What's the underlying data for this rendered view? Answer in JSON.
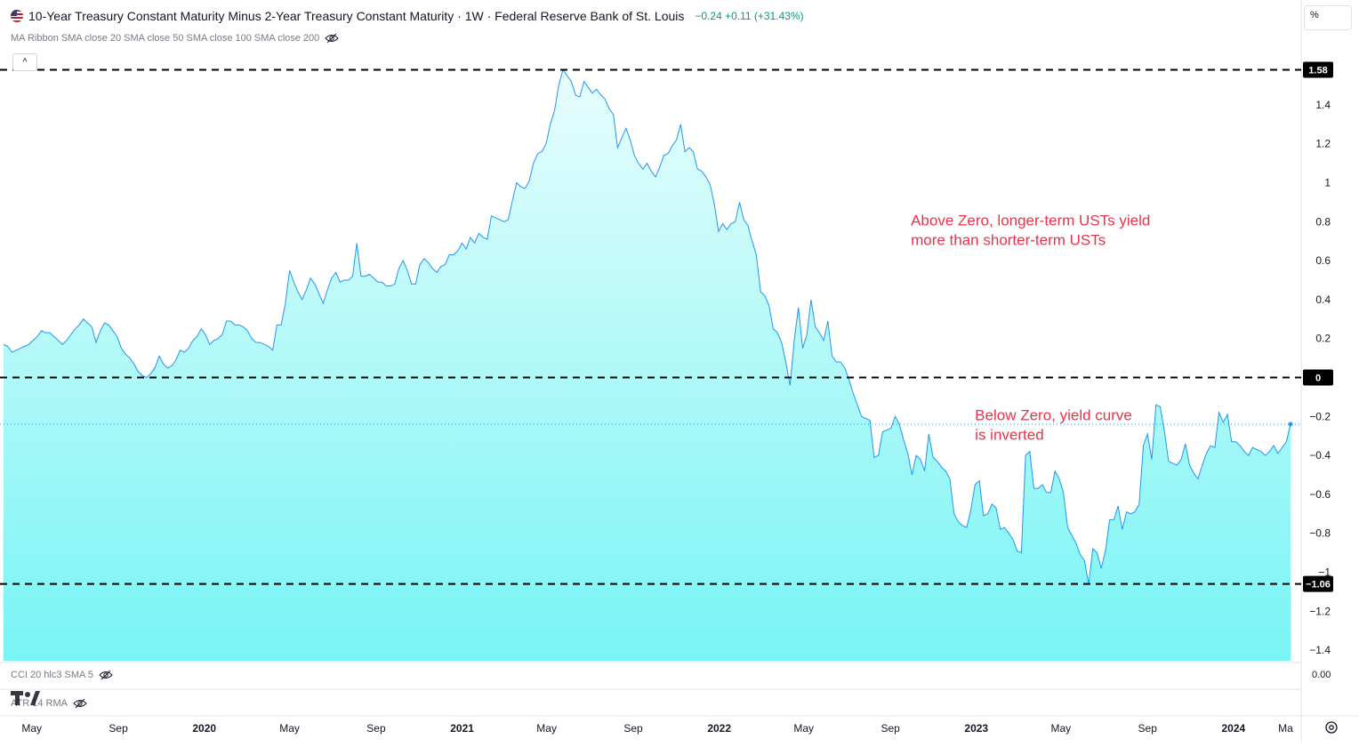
{
  "header": {
    "title": "10-Year Treasury Constant Maturity Minus 2-Year Treasury Constant Maturity · 1W · Federal Reserve Bank of St. Louis",
    "change": "−0.24 +0.11 (+31.43%)",
    "ma_ribbon": "MA Ribbon SMA close 20 SMA close 50 SMA close 100 SMA close 200",
    "flag_icon": "us-flag-icon"
  },
  "indicators": {
    "cci": "CCI 20 hlc3 SMA 5",
    "cci_value": "0.00",
    "atr": "ATR 14 RMA"
  },
  "scale_button": "%",
  "collapse_symbol": "^",
  "colors": {
    "line": "#2196f3",
    "fill_top": "#e9fdfd",
    "fill_bottom": "#78f4f4",
    "annotation": "#e8334a",
    "badge_bg": "#000000",
    "axis_text": "#131722"
  },
  "chart_data": {
    "type": "area",
    "title": "10-Year Treasury Constant Maturity Minus 2-Year Treasury Constant Maturity",
    "interval": "1W",
    "x_axis_labels": [
      "May",
      "Sep",
      "2020",
      "May",
      "Sep",
      "2021",
      "May",
      "Sep",
      "2022",
      "May",
      "Sep",
      "2023",
      "May",
      "Sep",
      "2024",
      "Ma"
    ],
    "y_axis_ticks": [
      1.4,
      1.2,
      1,
      0.8,
      0.6,
      0.4,
      0.2,
      0,
      -0.2,
      -0.4,
      -0.6,
      -0.8,
      -1,
      -1.2,
      -1.4
    ],
    "ylim": [
      -1.47,
      1.6
    ],
    "x_start": "2019-03-22",
    "x_end": "2024-03-22",
    "last_value": -0.24,
    "series": [
      {
        "values": [
          0.17,
          0.16,
          0.13,
          0.14,
          0.15,
          0.16,
          0.17,
          0.19,
          0.21,
          0.24,
          0.23,
          0.23,
          0.21,
          0.19,
          0.17,
          0.19,
          0.22,
          0.25,
          0.27,
          0.3,
          0.28,
          0.26,
          0.18,
          0.24,
          0.28,
          0.27,
          0.24,
          0.21,
          0.15,
          0.12,
          0.1,
          0.07,
          0.03,
          0.01,
          0.0,
          0.02,
          0.05,
          0.11,
          0.07,
          0.05,
          0.06,
          0.09,
          0.14,
          0.13,
          0.15,
          0.19,
          0.21,
          0.25,
          0.22,
          0.17,
          0.19,
          0.2,
          0.22,
          0.29,
          0.29,
          0.27,
          0.27,
          0.26,
          0.24,
          0.2,
          0.18,
          0.18,
          0.17,
          0.16,
          0.14,
          0.27,
          0.27,
          0.38,
          0.55,
          0.49,
          0.44,
          0.4,
          0.45,
          0.51,
          0.48,
          0.43,
          0.38,
          0.45,
          0.51,
          0.54,
          0.49,
          0.5,
          0.5,
          0.52,
          0.69,
          0.52,
          0.52,
          0.53,
          0.51,
          0.49,
          0.49,
          0.47,
          0.47,
          0.48,
          0.56,
          0.6,
          0.55,
          0.48,
          0.48,
          0.58,
          0.61,
          0.59,
          0.56,
          0.54,
          0.57,
          0.58,
          0.63,
          0.63,
          0.65,
          0.69,
          0.66,
          0.72,
          0.69,
          0.74,
          0.72,
          0.71,
          0.83,
          0.82,
          0.81,
          0.8,
          0.81,
          0.91,
          1.0,
          0.98,
          0.97,
          1.01,
          1.1,
          1.15,
          1.16,
          1.2,
          1.3,
          1.37,
          1.5,
          1.58,
          1.55,
          1.52,
          1.45,
          1.44,
          1.52,
          1.49,
          1.46,
          1.48,
          1.45,
          1.43,
          1.38,
          1.35,
          1.18,
          1.23,
          1.28,
          1.22,
          1.14,
          1.1,
          1.07,
          1.1,
          1.06,
          1.03,
          1.08,
          1.14,
          1.15,
          1.19,
          1.22,
          1.3,
          1.16,
          1.18,
          1.16,
          1.07,
          1.06,
          1.03,
          0.99,
          0.89,
          0.75,
          0.79,
          0.76,
          0.79,
          0.8,
          0.9,
          0.81,
          0.78,
          0.7,
          0.63,
          0.44,
          0.42,
          0.37,
          0.25,
          0.23,
          0.18,
          0.08,
          -0.04,
          0.19,
          0.36,
          0.15,
          0.22,
          0.4,
          0.26,
          0.23,
          0.19,
          0.29,
          0.11,
          0.08,
          0.08,
          0.05,
          -0.01,
          -0.08,
          -0.14,
          -0.2,
          -0.21,
          -0.22,
          -0.41,
          -0.4,
          -0.28,
          -0.27,
          -0.26,
          -0.2,
          -0.24,
          -0.32,
          -0.39,
          -0.5,
          -0.4,
          -0.42,
          -0.48,
          -0.29,
          -0.41,
          -0.43,
          -0.46,
          -0.48,
          -0.52,
          -0.7,
          -0.74,
          -0.76,
          -0.77,
          -0.68,
          -0.55,
          -0.53,
          -0.71,
          -0.7,
          -0.65,
          -0.67,
          -0.78,
          -0.77,
          -0.8,
          -0.83,
          -0.89,
          -0.9,
          -0.4,
          -0.38,
          -0.57,
          -0.57,
          -0.55,
          -0.59,
          -0.59,
          -0.48,
          -0.52,
          -0.59,
          -0.77,
          -0.81,
          -0.85,
          -0.91,
          -0.94,
          -1.06,
          -0.88,
          -0.9,
          -0.98,
          -0.89,
          -0.73,
          -0.73,
          -0.66,
          -0.78,
          -0.69,
          -0.7,
          -0.69,
          -0.65,
          -0.35,
          -0.29,
          -0.42,
          -0.14,
          -0.15,
          -0.27,
          -0.43,
          -0.44,
          -0.45,
          -0.42,
          -0.34,
          -0.45,
          -0.49,
          -0.52,
          -0.45,
          -0.39,
          -0.35,
          -0.36,
          -0.18,
          -0.23,
          -0.19,
          -0.33,
          -0.33,
          -0.35,
          -0.38,
          -0.4,
          -0.36,
          -0.37,
          -0.38,
          -0.4,
          -0.38,
          -0.35,
          -0.39,
          -0.36,
          -0.33,
          -0.24
        ]
      }
    ],
    "horizontal_lines": [
      {
        "value": 1.58,
        "label": "1.58"
      },
      {
        "value": 0,
        "label": "0"
      },
      {
        "value": -1.06,
        "label": "−1.06"
      }
    ],
    "annotations": [
      {
        "lines": [
          "Above Zero, longer-term USTs yield",
          "more than shorter-term USTs"
        ],
        "x": "2022-09-30",
        "y": 0.78
      },
      {
        "lines": [
          "Below Zero, yield curve",
          "is inverted"
        ],
        "x": "2022-12-30",
        "y": -0.22
      }
    ]
  }
}
